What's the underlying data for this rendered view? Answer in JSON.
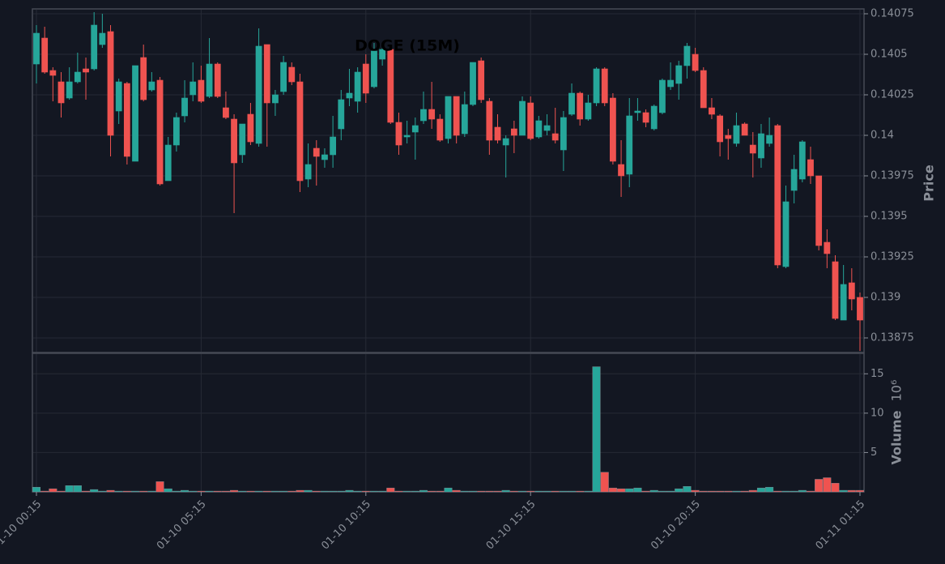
{
  "chart_data": [
    {
      "type": "candlestick",
      "title": "DOGE (15M)",
      "y_label": "Price",
      "up_color": "#26a69a",
      "down_color": "#ef5350",
      "grid": true,
      "x": [
        "01-10 00:15",
        "01-10 00:30",
        "01-10 00:45",
        "01-10 01:00",
        "01-10 01:15",
        "01-10 01:30",
        "01-10 01:45",
        "01-10 02:00",
        "01-10 02:15",
        "01-10 02:30",
        "01-10 02:45",
        "01-10 03:00",
        "01-10 03:15",
        "01-10 03:30",
        "01-10 03:45",
        "01-10 04:00",
        "01-10 04:15",
        "01-10 04:30",
        "01-10 04:45",
        "01-10 05:00",
        "01-10 05:15",
        "01-10 05:30",
        "01-10 05:45",
        "01-10 06:00",
        "01-10 06:15",
        "01-10 06:30",
        "01-10 06:45",
        "01-10 07:00",
        "01-10 07:15",
        "01-10 07:30",
        "01-10 07:45",
        "01-10 08:00",
        "01-10 08:15",
        "01-10 08:30",
        "01-10 08:45",
        "01-10 09:00",
        "01-10 09:15",
        "01-10 09:30",
        "01-10 09:45",
        "01-10 10:00",
        "01-10 10:15",
        "01-10 10:30",
        "01-10 10:45",
        "01-10 11:00",
        "01-10 11:15",
        "01-10 11:30",
        "01-10 11:45",
        "01-10 12:00",
        "01-10 12:15",
        "01-10 12:30",
        "01-10 12:45",
        "01-10 13:00",
        "01-10 13:15",
        "01-10 13:30",
        "01-10 13:45",
        "01-10 14:00",
        "01-10 14:15",
        "01-10 14:30",
        "01-10 14:45",
        "01-10 15:00",
        "01-10 15:15",
        "01-10 15:30",
        "01-10 15:45",
        "01-10 16:00",
        "01-10 16:15",
        "01-10 16:30",
        "01-10 16:45",
        "01-10 17:00",
        "01-10 17:15",
        "01-10 17:30",
        "01-10 17:45",
        "01-10 18:00",
        "01-10 18:15",
        "01-10 18:30",
        "01-10 18:45",
        "01-10 19:00",
        "01-10 19:15",
        "01-10 19:30",
        "01-10 19:45",
        "01-10 20:00",
        "01-10 20:15",
        "01-10 20:30",
        "01-10 20:45",
        "01-10 21:00",
        "01-10 21:15",
        "01-10 21:30",
        "01-10 21:45",
        "01-10 22:00",
        "01-10 22:15",
        "01-10 22:30",
        "01-10 22:45",
        "01-10 23:00",
        "01-10 23:15",
        "01-10 23:30",
        "01-10 23:45",
        "01-11 00:00",
        "01-11 00:15",
        "01-11 00:30",
        "01-11 00:45",
        "01-11 01:00",
        "01-11 01:15"
      ],
      "xticks": [
        "01-10 00:15",
        "01-10 05:15",
        "01-10 10:15",
        "01-10 15:15",
        "01-10 20:15",
        "01-11 01:15"
      ],
      "open": [
        0.14044,
        0.1406,
        0.1404,
        0.14033,
        0.14023,
        0.14033,
        0.14041,
        0.14041,
        0.14056,
        0.14064,
        0.14015,
        0.14032,
        0.13984,
        0.14048,
        0.14028,
        0.14034,
        0.13972,
        0.13994,
        0.14012,
        0.14025,
        0.14034,
        0.14024,
        0.14044,
        0.14017,
        0.1401,
        0.13988,
        0.14013,
        0.13995,
        0.14056,
        0.1402,
        0.14027,
        0.14042,
        0.14033,
        0.13973,
        0.13992,
        0.13985,
        0.13988,
        0.14004,
        0.14023,
        0.14021,
        0.14044,
        0.1403,
        0.14047,
        0.14053,
        0.14008,
        0.13999,
        0.14002,
        0.14009,
        0.14016,
        0.1401,
        0.13998,
        0.14024,
        0.14001,
        0.14019,
        0.14046,
        0.14021,
        0.14005,
        0.13994,
        0.14004,
        0.14,
        0.1402,
        0.13999,
        0.14003,
        0.14001,
        0.13991,
        0.14013,
        0.14026,
        0.1401,
        0.1402,
        0.14041,
        0.14023,
        0.13982,
        0.13976,
        0.14014,
        0.14014,
        0.14004,
        0.14014,
        0.1403,
        0.14032,
        0.14043,
        0.1405,
        0.1404,
        0.14017,
        0.14012,
        0.14,
        0.13995,
        0.14007,
        0.13994,
        0.13986,
        0.13995,
        0.14006,
        0.13919,
        0.13966,
        0.13973,
        0.13985,
        0.13975,
        0.13934,
        0.13922,
        0.13886,
        0.13909,
        0.139
      ],
      "high": [
        0.14068,
        0.14067,
        0.14042,
        0.14039,
        0.14042,
        0.14051,
        0.14048,
        0.14076,
        0.14075,
        0.14068,
        0.14035,
        0.14033,
        0.14043,
        0.14056,
        0.14039,
        0.14036,
        0.13999,
        0.14014,
        0.14034,
        0.14045,
        0.14043,
        0.1406,
        0.14045,
        0.14027,
        0.14013,
        0.14007,
        0.1402,
        0.14066,
        0.14056,
        0.14028,
        0.14049,
        0.14045,
        0.14038,
        0.13995,
        0.13997,
        0.13992,
        0.14012,
        0.14028,
        0.14041,
        0.14042,
        0.1405,
        0.14057,
        0.14057,
        0.14055,
        0.14014,
        0.14009,
        0.14011,
        0.14027,
        0.14033,
        0.14013,
        0.14024,
        0.14024,
        0.14027,
        0.14045,
        0.14048,
        0.14023,
        0.14013,
        0.14,
        0.14009,
        0.14024,
        0.14024,
        0.14012,
        0.14013,
        0.14017,
        0.14015,
        0.14032,
        0.14027,
        0.14025,
        0.14042,
        0.14042,
        0.14026,
        0.13997,
        0.14023,
        0.14023,
        0.14016,
        0.14019,
        0.14035,
        0.14045,
        0.14046,
        0.14057,
        0.14054,
        0.14042,
        0.14023,
        0.14013,
        0.14004,
        0.14014,
        0.14008,
        0.14002,
        0.14007,
        0.14011,
        0.14007,
        0.13969,
        0.13988,
        0.13997,
        0.13993,
        0.13975,
        0.13942,
        0.13926,
        0.1392,
        0.13918,
        0.13903
      ],
      "low": [
        0.14032,
        0.14038,
        0.14021,
        0.14011,
        0.14022,
        0.14032,
        0.14022,
        0.1404,
        0.14054,
        0.13987,
        0.14007,
        0.13982,
        0.13984,
        0.14021,
        0.14027,
        0.13969,
        0.13972,
        0.1399,
        0.14008,
        0.14021,
        0.1402,
        0.14023,
        0.14023,
        0.1401,
        0.13952,
        0.13983,
        0.13994,
        0.13993,
        0.13993,
        0.14012,
        0.14025,
        0.14031,
        0.13965,
        0.13968,
        0.13969,
        0.1398,
        0.1398,
        0.13997,
        0.14018,
        0.14014,
        0.1402,
        0.14029,
        0.14043,
        0.14007,
        0.13988,
        0.13995,
        0.13985,
        0.14007,
        0.14004,
        0.13996,
        0.13995,
        0.13995,
        0.13999,
        0.14018,
        0.1402,
        0.13988,
        0.13995,
        0.13974,
        0.13989,
        0.14,
        0.13997,
        0.13998,
        0.14,
        0.13995,
        0.13978,
        0.14012,
        0.14006,
        0.14009,
        0.14018,
        0.14018,
        0.13982,
        0.13962,
        0.13968,
        0.14009,
        0.14005,
        0.14003,
        0.14013,
        0.14028,
        0.14022,
        0.14035,
        0.14039,
        0.14017,
        0.1401,
        0.13987,
        0.13985,
        0.13993,
        0.14,
        0.13974,
        0.1398,
        0.13993,
        0.13918,
        0.13918,
        0.13958,
        0.13971,
        0.1397,
        0.13929,
        0.13918,
        0.13886,
        0.13886,
        0.13892,
        0.13867
      ],
      "close": [
        0.14063,
        0.14039,
        0.14037,
        0.1402,
        0.14033,
        0.14039,
        0.14039,
        0.14068,
        0.14063,
        0.14,
        0.14033,
        0.13987,
        0.14043,
        0.14022,
        0.14033,
        0.1397,
        0.13994,
        0.14011,
        0.14023,
        0.14033,
        0.14021,
        0.14044,
        0.14024,
        0.14011,
        0.13983,
        0.14007,
        0.13996,
        0.14055,
        0.1402,
        0.14025,
        0.14045,
        0.14033,
        0.13972,
        0.13982,
        0.13987,
        0.13988,
        0.13999,
        0.14022,
        0.14026,
        0.14039,
        0.14026,
        0.14052,
        0.14053,
        0.14008,
        0.13994,
        0.14,
        0.14006,
        0.14016,
        0.1401,
        0.13997,
        0.14024,
        0.14,
        0.14019,
        0.14045,
        0.14022,
        0.13997,
        0.13997,
        0.13998,
        0.14,
        0.14021,
        0.13998,
        0.14009,
        0.14006,
        0.13997,
        0.14011,
        0.14026,
        0.1401,
        0.1402,
        0.14041,
        0.1402,
        0.13984,
        0.13975,
        0.14012,
        0.14015,
        0.14008,
        0.14018,
        0.14034,
        0.14034,
        0.14043,
        0.14055,
        0.1404,
        0.14017,
        0.14013,
        0.13996,
        0.13998,
        0.14006,
        0.14,
        0.13989,
        0.14001,
        0.14,
        0.1392,
        0.13959,
        0.13979,
        0.13996,
        0.13975,
        0.13932,
        0.13927,
        0.13887,
        0.13908,
        0.13899,
        0.13886
      ],
      "ylim": [
        0.13866,
        0.14078
      ],
      "yticks": [
        0.13875,
        0.139,
        0.13925,
        0.1395,
        0.13975,
        0.14,
        0.14025,
        0.1405,
        0.14075
      ]
    },
    {
      "type": "volume",
      "y_label": "Volume",
      "scale_label": "10⁶",
      "grid": true,
      "values": [
        0.6,
        0.1,
        0.4,
        0.1,
        0.8,
        0.8,
        0.1,
        0.3,
        0.1,
        0.2,
        0.1,
        0.1,
        0.1,
        0.1,
        0.1,
        1.3,
        0.4,
        0.1,
        0.2,
        0.1,
        0.1,
        0.1,
        0.1,
        0.1,
        0.2,
        0.1,
        0.1,
        0.1,
        0.1,
        0.1,
        0.1,
        0.1,
        0.2,
        0.2,
        0.1,
        0.1,
        0.1,
        0.1,
        0.2,
        0.1,
        0.1,
        0.1,
        0.1,
        0.5,
        0.1,
        0.1,
        0.1,
        0.2,
        0.1,
        0.1,
        0.5,
        0.2,
        0.1,
        0.1,
        0.1,
        0.1,
        0.1,
        0.2,
        0.1,
        0.1,
        0.1,
        0.1,
        0.1,
        0.1,
        0.1,
        0.1,
        0.1,
        0.1,
        15.9,
        2.5,
        0.5,
        0.4,
        0.4,
        0.5,
        0.1,
        0.2,
        0.1,
        0.1,
        0.4,
        0.7,
        0.2,
        0.1,
        0.1,
        0.1,
        0.1,
        0.1,
        0.1,
        0.2,
        0.5,
        0.6,
        0.1,
        0.1,
        0.1,
        0.2,
        0.1,
        1.6,
        1.8,
        1.1,
        0.2,
        0.2,
        0.2
      ],
      "ylim": [
        0,
        17.5
      ],
      "yticks": [
        5,
        10,
        15
      ]
    }
  ]
}
